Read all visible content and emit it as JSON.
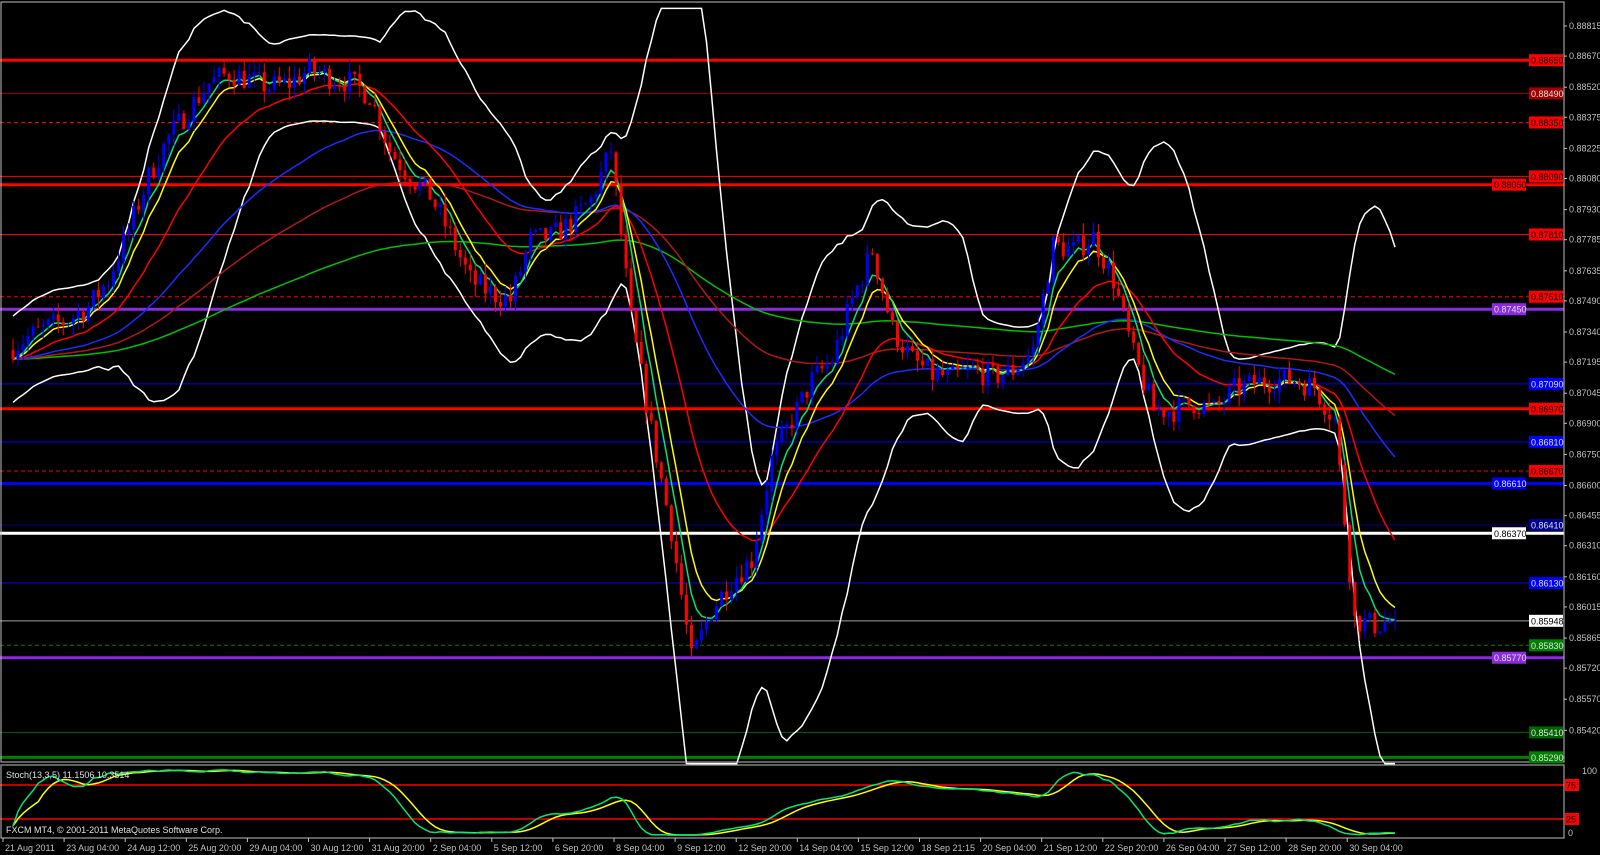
{
  "chart_data": {
    "type": "candlestick",
    "symbol_panel": "main",
    "colors": {
      "background": "#000000",
      "bull": "#0000ff",
      "bear": "#ff0000",
      "axis": "#c0c0c0",
      "bollinger": "#ffffff",
      "stoch_main": "#00e676",
      "stoch_signal": "#ffff00"
    },
    "closes": [
      0.87253,
      0.87316,
      0.87364,
      0.87398,
      0.87461,
      0.87591,
      0.87832,
      0.88087,
      0.8828,
      0.8841,
      0.8854,
      0.88589,
      0.88555,
      0.88521,
      0.8854,
      0.88603,
      0.88569,
      0.88545,
      0.88482,
      0.88217,
      0.88087,
      0.88,
      0.87808,
      0.87591,
      0.87528,
      0.87494,
      0.87784,
      0.87798,
      0.87865,
      0.87976,
      0.88217,
      0.87398,
      0.86868,
      0.86386,
      0.85759,
      0.86,
      0.86145,
      0.86241,
      0.86723,
      0.86916,
      0.87109,
      0.87205,
      0.87494,
      0.87735,
      0.8735,
      0.87205,
      0.87133,
      0.87123,
      0.87157,
      0.87123,
      0.87157,
      0.87253,
      0.87759,
      0.87735,
      0.87798,
      0.87591,
      0.87229,
      0.86964,
      0.86964,
      0.86998,
      0.86964,
      0.87061,
      0.87094,
      0.87109,
      0.87109,
      0.87075,
      0.86916,
      0.85952,
      0.85928,
      0.85948
    ],
    "ylim": [
      0.85249,
      0.88907
    ],
    "price_ticks": [
      "0.88815",
      "0.88670",
      "0.88520",
      "0.88375",
      "0.88225",
      "0.88080",
      "0.87930",
      "0.87785",
      "0.87635",
      "0.87490",
      "0.87340",
      "0.87195",
      "0.87045",
      "0.86900",
      "0.86750",
      "0.86600",
      "0.86455",
      "0.86310",
      "0.86160",
      "0.86015",
      "0.85865",
      "0.85720",
      "0.85570",
      "0.85420",
      "0.85270"
    ],
    "time_ticks": [
      "21 Aug 2011",
      "23 Aug 04:00",
      "24 Aug 12:00",
      "25 Aug 20:00",
      "29 Aug 04:00",
      "30 Aug 12:00",
      "31 Aug 20:00",
      "2 Sep 04:00",
      "5 Sep 12:00",
      "6 Sep 20:00",
      "8 Sep 04:00",
      "9 Sep 12:00",
      "12 Sep 20:00",
      "14 Sep 04:00",
      "15 Sep 12:00",
      "18 Sep 21:15",
      "20 Sep 04:00",
      "21 Sep 12:00",
      "22 Sep 20:00",
      "26 Sep 04:00",
      "27 Sep 12:00",
      "28 Sep 20:00",
      "30 Sep 04:00"
    ],
    "moving_averages": [
      {
        "period": 200,
        "color": "#00c000"
      },
      {
        "period": 100,
        "color": "#b01818"
      },
      {
        "period": 55,
        "color": "#1a2cff"
      },
      {
        "period": 21,
        "color": "#ff0000"
      },
      {
        "period": 8,
        "color": "#ffff00"
      },
      {
        "period": 5,
        "color": "#00e676"
      }
    ],
    "bollinger": {
      "period": 20,
      "deviation": 2
    },
    "levels": [
      {
        "price": "0.88650",
        "color": "#ff0000",
        "style": "thick"
      },
      {
        "price": "0.88490",
        "color": "#a00000",
        "style": "solid"
      },
      {
        "price": "0.88350",
        "color": "#ff0000",
        "style": "dashed"
      },
      {
        "price": "0.88090",
        "color": "#ff0000",
        "style": "solid"
      },
      {
        "price": "0.88050",
        "color": "#ff0000",
        "style": "thick"
      },
      {
        "price": "0.87810",
        "color": "#ff0000",
        "style": "solid"
      },
      {
        "price": "0.87510",
        "color": "#ff0000",
        "style": "dashed"
      },
      {
        "price": "0.87450",
        "color": "#8a2be2",
        "style": "thick"
      },
      {
        "price": "0.87090",
        "color": "#0000ff",
        "style": "solid"
      },
      {
        "price": "0.86970",
        "color": "#ff0000",
        "style": "thick"
      },
      {
        "price": "0.86810",
        "color": "#0000ff",
        "style": "solid"
      },
      {
        "price": "0.86670",
        "color": "#ff0000",
        "style": "dashed"
      },
      {
        "price": "0.86610",
        "color": "#0000ff",
        "style": "thick"
      },
      {
        "price": "0.86410",
        "color": "#000090",
        "style": "solid"
      },
      {
        "price": "0.86370",
        "color": "#ffffff",
        "style": "thick"
      },
      {
        "price": "0.86130",
        "color": "#0000ff",
        "style": "solid"
      },
      {
        "price": "0.85948",
        "color": "#a0a0a0",
        "style": "bid"
      },
      {
        "price": "0.85830",
        "color": "#008000",
        "style": "dashed"
      },
      {
        "price": "0.85770",
        "color": "#8a2be2",
        "style": "thick"
      },
      {
        "price": "0.85410",
        "color": "#006400",
        "style": "solid"
      },
      {
        "price": "0.85290",
        "color": "#008000",
        "style": "thick"
      }
    ],
    "stochastic": {
      "label": "Stoch(13,3,5) 11.1506 10.3514",
      "k_period": 13,
      "d_period": 3,
      "slowing": 5,
      "levels": [
        "75",
        "25"
      ],
      "scale_labels": [
        "100",
        "0"
      ]
    }
  },
  "footer": {
    "copyright": "FXCM MT4, © 2001-2011 MetaQuotes Software Corp."
  }
}
